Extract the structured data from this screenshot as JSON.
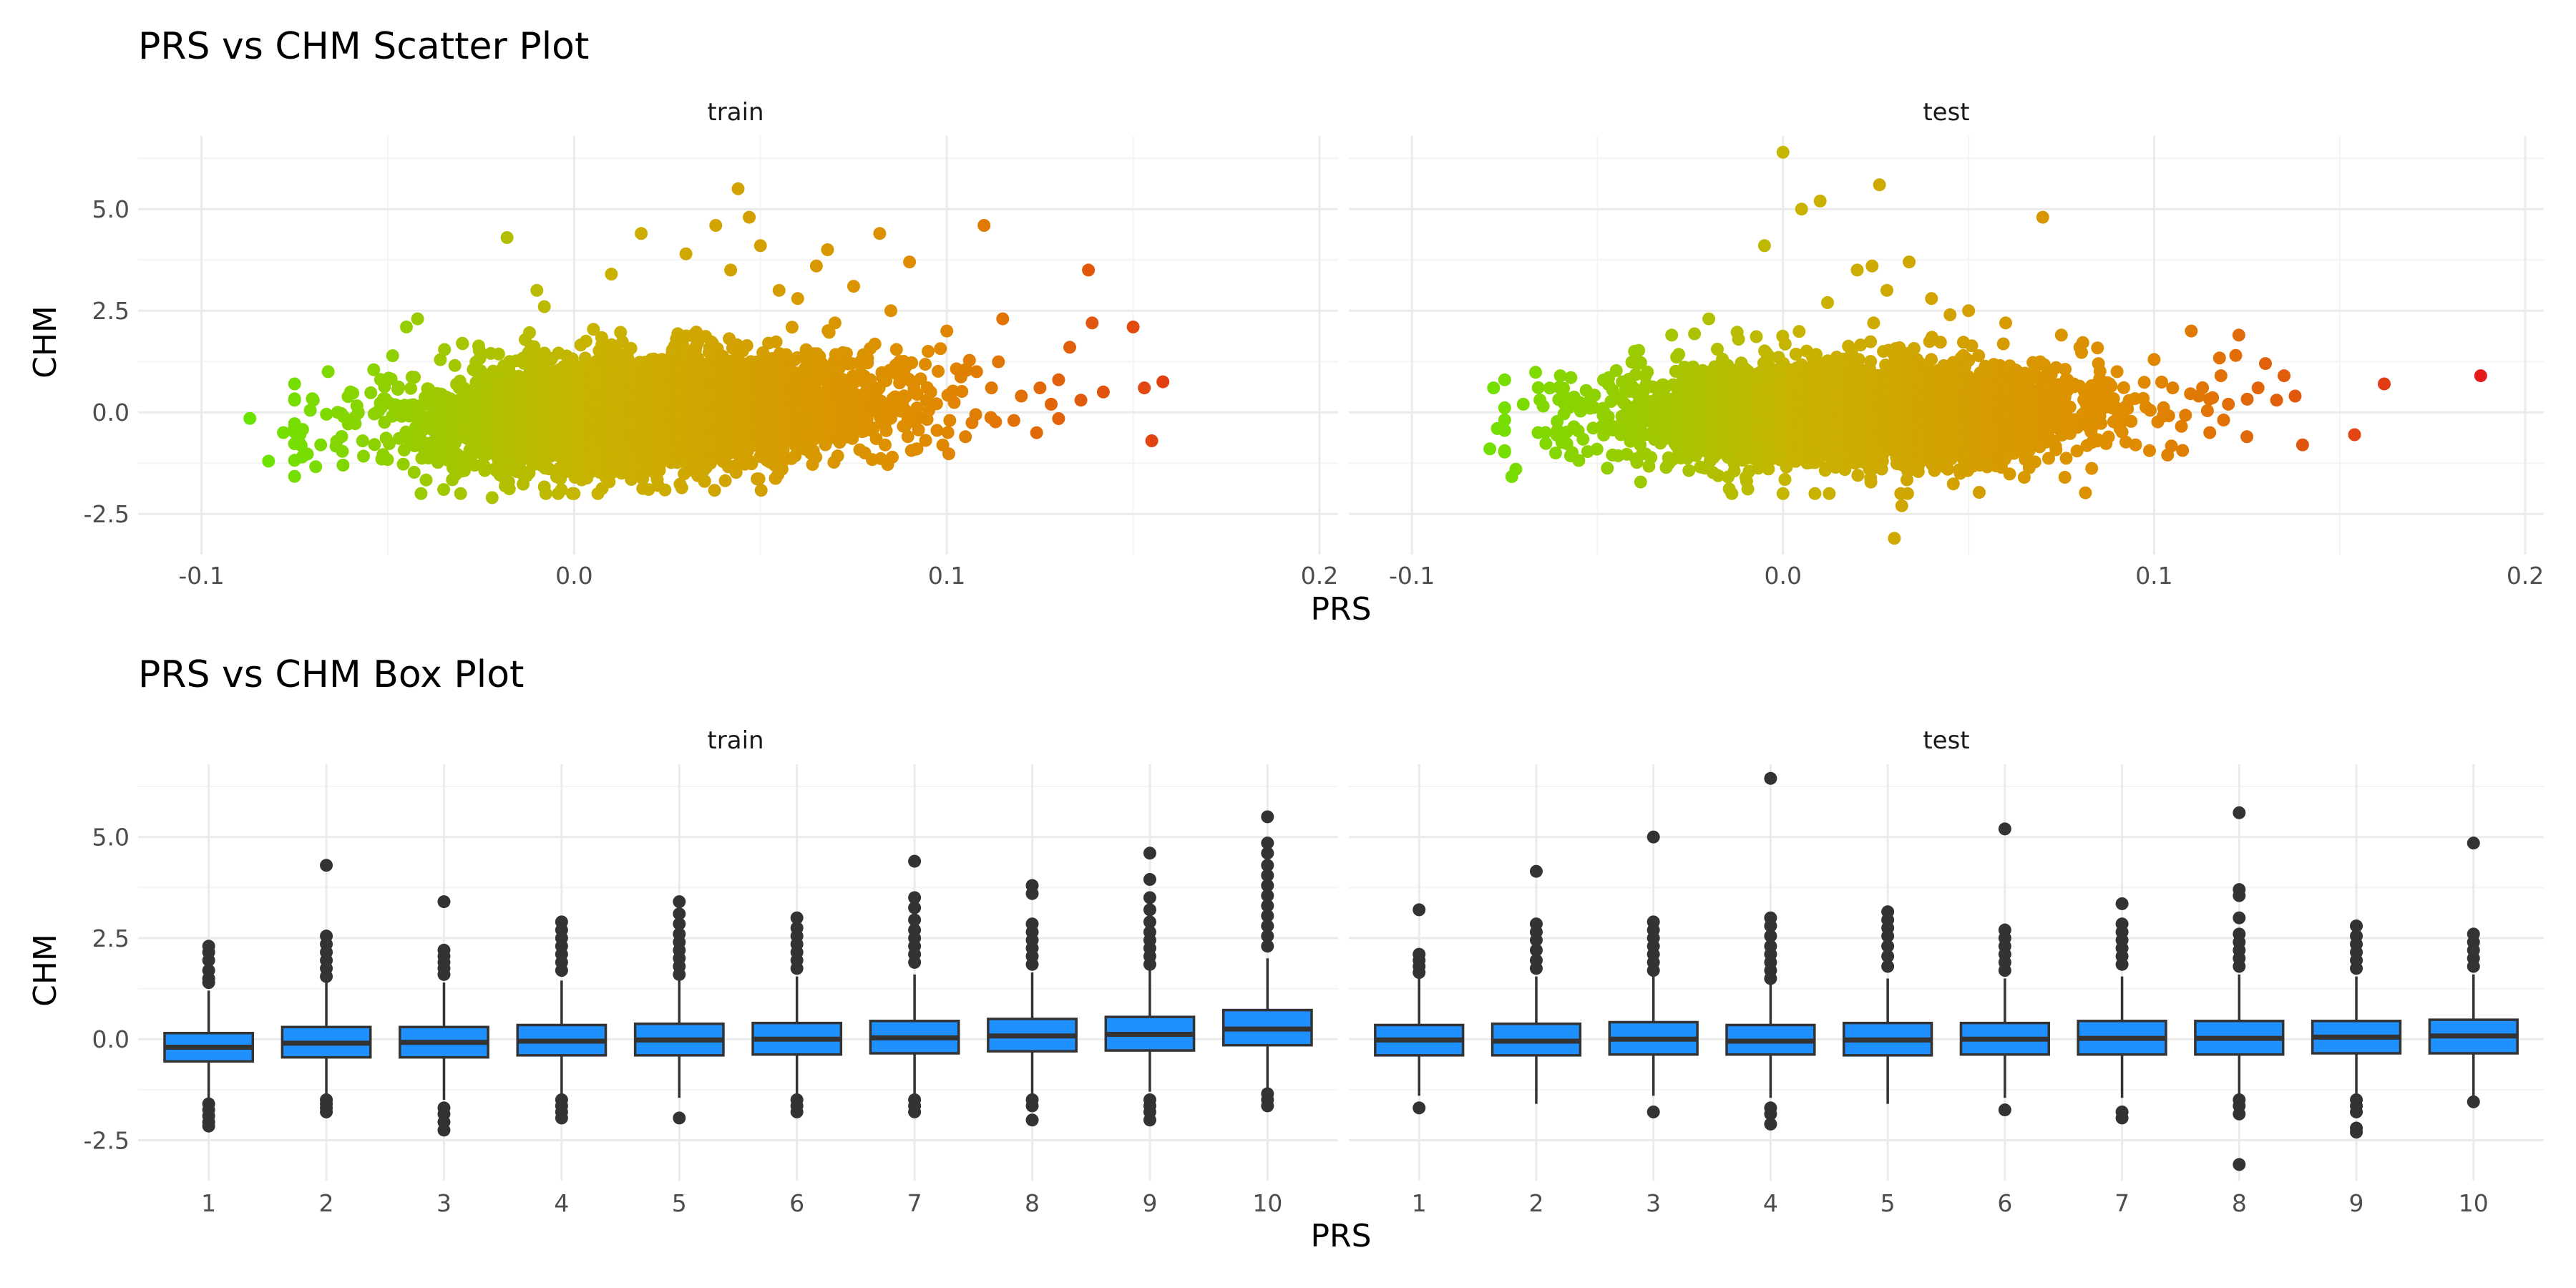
{
  "chart_data": [
    {
      "type": "scatter",
      "title": "PRS vs CHM Scatter Plot",
      "xlabel": "PRS",
      "ylabel": "CHM",
      "xlim": [
        -0.1,
        0.2
      ],
      "ylim": [
        -3.5,
        6.8
      ],
      "x_ticks": [
        "-0.1",
        "0.0",
        "0.1",
        "0.2"
      ],
      "y_ticks": [
        "-2.5",
        "0.0",
        "2.5",
        "5.0"
      ],
      "color_gradient": [
        "#66e600",
        "#c8b400",
        "#e08a00",
        "#e31a1c"
      ],
      "legend": "none",
      "grid": true,
      "facets": [
        {
          "label": "train",
          "cloud": {
            "x_mean": 0.02,
            "x_sd": 0.03,
            "y_mean": 0.0,
            "y_sd": 0.65,
            "n": 4500
          },
          "points": [
            [
              -0.087,
              -0.15
            ],
            [
              -0.082,
              -1.2
            ],
            [
              -0.078,
              -0.5
            ],
            [
              -0.075,
              0.7
            ],
            [
              -0.073,
              -1.1
            ],
            [
              -0.07,
              0.3
            ],
            [
              -0.068,
              -0.8
            ],
            [
              -0.066,
              1.0
            ],
            [
              -0.062,
              -1.3
            ],
            [
              -0.06,
              0.5
            ],
            [
              -0.045,
              2.1
            ],
            [
              -0.042,
              2.3
            ],
            [
              -0.035,
              -1.9
            ],
            [
              -0.03,
              1.7
            ],
            [
              -0.022,
              -2.1
            ],
            [
              -0.018,
              4.3
            ],
            [
              -0.01,
              3.0
            ],
            [
              -0.008,
              2.6
            ],
            [
              0.0,
              -2.0
            ],
            [
              0.01,
              3.4
            ],
            [
              0.018,
              4.4
            ],
            [
              0.02,
              -1.9
            ],
            [
              0.03,
              3.9
            ],
            [
              0.035,
              -1.7
            ],
            [
              0.038,
              4.6
            ],
            [
              0.042,
              3.5
            ],
            [
              0.044,
              5.5
            ],
            [
              0.047,
              4.8
            ],
            [
              0.05,
              4.1
            ],
            [
              0.055,
              3.0
            ],
            [
              0.06,
              2.8
            ],
            [
              0.065,
              3.6
            ],
            [
              0.068,
              4.0
            ],
            [
              0.07,
              2.2
            ],
            [
              0.075,
              3.1
            ],
            [
              0.078,
              -1.0
            ],
            [
              0.082,
              4.4
            ],
            [
              0.085,
              2.5
            ],
            [
              0.09,
              3.7
            ],
            [
              0.092,
              -0.9
            ],
            [
              0.095,
              1.5
            ],
            [
              0.1,
              2.0
            ],
            [
              0.105,
              -0.6
            ],
            [
              0.108,
              1.0
            ],
            [
              0.11,
              4.6
            ],
            [
              0.112,
              0.6
            ],
            [
              0.115,
              2.3
            ],
            [
              0.118,
              -0.2
            ],
            [
              0.12,
              0.4
            ],
            [
              0.125,
              0.6
            ],
            [
              0.128,
              0.2
            ],
            [
              0.13,
              0.8
            ],
            [
              0.133,
              1.6
            ],
            [
              0.136,
              0.3
            ],
            [
              0.138,
              3.5
            ],
            [
              0.139,
              2.2
            ],
            [
              0.142,
              0.5
            ],
            [
              0.15,
              2.1
            ],
            [
              0.153,
              0.6
            ],
            [
              0.155,
              -0.7
            ],
            [
              0.158,
              0.75
            ]
          ]
        },
        {
          "label": "test",
          "cloud": {
            "x_mean": 0.02,
            "x_sd": 0.03,
            "y_mean": 0.0,
            "y_sd": 0.6,
            "n": 4000
          },
          "points": [
            [
              -0.079,
              -0.9
            ],
            [
              -0.078,
              0.6
            ],
            [
              -0.077,
              -0.4
            ],
            [
              -0.075,
              0.8
            ],
            [
              -0.072,
              -1.4
            ],
            [
              -0.07,
              0.2
            ],
            [
              -0.066,
              -0.5
            ],
            [
              -0.06,
              0.9
            ],
            [
              -0.04,
              1.5
            ],
            [
              -0.03,
              1.9
            ],
            [
              -0.02,
              2.3
            ],
            [
              -0.012,
              1.8
            ],
            [
              -0.01,
              -1.6
            ],
            [
              0.0,
              6.4
            ],
            [
              0.0,
              -2.0
            ],
            [
              -0.005,
              4.1
            ],
            [
              0.005,
              5.0
            ],
            [
              0.01,
              5.2
            ],
            [
              0.012,
              2.7
            ],
            [
              0.02,
              3.5
            ],
            [
              0.024,
              3.6
            ],
            [
              0.026,
              5.6
            ],
            [
              0.028,
              3.0
            ],
            [
              0.03,
              -3.1
            ],
            [
              0.032,
              -2.3
            ],
            [
              0.034,
              3.7
            ],
            [
              0.04,
              2.8
            ],
            [
              0.045,
              2.4
            ],
            [
              0.05,
              2.5
            ],
            [
              0.06,
              2.2
            ],
            [
              0.065,
              -1.6
            ],
            [
              0.07,
              4.8
            ],
            [
              0.075,
              1.9
            ],
            [
              0.08,
              1.6
            ],
            [
              0.085,
              1.2
            ],
            [
              0.09,
              1.0
            ],
            [
              0.095,
              -0.8
            ],
            [
              0.1,
              1.3
            ],
            [
              0.105,
              0.6
            ],
            [
              0.11,
              2.0
            ],
            [
              0.112,
              0.4
            ],
            [
              0.115,
              -0.5
            ],
            [
              0.118,
              0.9
            ],
            [
              0.12,
              0.2
            ],
            [
              0.122,
              1.4
            ],
            [
              0.125,
              -0.6
            ],
            [
              0.128,
              0.6
            ],
            [
              0.13,
              1.2
            ],
            [
              0.133,
              0.3
            ],
            [
              0.135,
              0.9
            ],
            [
              0.138,
              0.4
            ],
            [
              0.14,
              -0.8
            ],
            [
              0.154,
              -0.55
            ],
            [
              0.162,
              0.7
            ],
            [
              0.188,
              0.9
            ]
          ]
        }
      ]
    },
    {
      "type": "box",
      "title": "PRS vs CHM Box Plot",
      "xlabel": "PRS",
      "ylabel": "CHM",
      "categories": [
        "1",
        "2",
        "3",
        "4",
        "5",
        "6",
        "7",
        "8",
        "9",
        "10"
      ],
      "ylim": [
        -3.5,
        6.8
      ],
      "y_ticks": [
        "-2.5",
        "0.0",
        "2.5",
        "5.0"
      ],
      "box_color": "#1e90ff",
      "grid": true,
      "facets": [
        {
          "label": "train",
          "boxes": [
            {
              "q1": -0.55,
              "median": -0.2,
              "q3": 0.15,
              "whisker_low": -1.5,
              "whisker_high": 1.2,
              "outliers": [
                2.3,
                2.15,
                1.95,
                1.7,
                1.5,
                1.4,
                -1.6,
                -1.75,
                -1.9,
                -2.05,
                -2.15
              ]
            },
            {
              "q1": -0.45,
              "median": -0.1,
              "q3": 0.3,
              "whisker_low": -1.45,
              "whisker_high": 1.4,
              "outliers": [
                4.3,
                2.55,
                2.35,
                2.15,
                1.95,
                1.75,
                1.55,
                -1.5,
                -1.6,
                -1.7,
                -1.8
              ]
            },
            {
              "q1": -0.45,
              "median": -0.08,
              "q3": 0.3,
              "whisker_low": -1.5,
              "whisker_high": 1.4,
              "outliers": [
                3.4,
                2.2,
                2.05,
                1.9,
                1.75,
                1.6,
                -1.7,
                -1.85,
                -2.05,
                -2.25
              ]
            },
            {
              "q1": -0.4,
              "median": -0.05,
              "q3": 0.35,
              "whisker_low": -1.45,
              "whisker_high": 1.45,
              "outliers": [
                2.9,
                2.7,
                2.5,
                2.3,
                2.1,
                1.9,
                1.7,
                -1.5,
                -1.65,
                -1.8,
                -1.95
              ]
            },
            {
              "q1": -0.4,
              "median": -0.02,
              "q3": 0.38,
              "whisker_low": -1.45,
              "whisker_high": 1.5,
              "outliers": [
                3.4,
                3.1,
                2.85,
                2.6,
                2.4,
                2.2,
                2.0,
                1.8,
                1.6,
                -1.95
              ]
            },
            {
              "q1": -0.38,
              "median": 0.0,
              "q3": 0.4,
              "whisker_low": -1.45,
              "whisker_high": 1.55,
              "outliers": [
                3.0,
                2.75,
                2.55,
                2.35,
                2.15,
                1.95,
                1.75,
                -1.5,
                -1.65,
                -1.8
              ]
            },
            {
              "q1": -0.35,
              "median": 0.03,
              "q3": 0.45,
              "whisker_low": -1.4,
              "whisker_high": 1.6,
              "outliers": [
                4.4,
                3.5,
                3.25,
                2.95,
                2.7,
                2.5,
                2.3,
                2.1,
                1.9,
                -1.5,
                -1.65,
                -1.8
              ]
            },
            {
              "q1": -0.3,
              "median": 0.08,
              "q3": 0.5,
              "whisker_low": -1.35,
              "whisker_high": 1.65,
              "outliers": [
                3.8,
                3.6,
                2.85,
                2.65,
                2.45,
                2.25,
                2.05,
                1.85,
                -1.5,
                -1.65,
                -2.0
              ]
            },
            {
              "q1": -0.28,
              "median": 0.12,
              "q3": 0.55,
              "whisker_low": -1.3,
              "whisker_high": 1.7,
              "outliers": [
                4.6,
                3.95,
                3.5,
                3.2,
                2.9,
                2.65,
                2.45,
                2.25,
                2.05,
                1.85,
                -1.5,
                -1.65,
                -1.8,
                -2.0
              ]
            },
            {
              "q1": -0.15,
              "median": 0.25,
              "q3": 0.72,
              "whisker_low": -1.3,
              "whisker_high": 2.0,
              "outliers": [
                5.5,
                4.85,
                4.6,
                4.3,
                4.05,
                3.8,
                3.55,
                3.3,
                3.05,
                2.8,
                2.55,
                2.3,
                -1.35,
                -1.5,
                -1.65
              ]
            }
          ]
        },
        {
          "label": "test",
          "boxes": [
            {
              "q1": -0.4,
              "median": -0.02,
              "q3": 0.35,
              "whisker_low": -1.4,
              "whisker_high": 1.5,
              "outliers": [
                3.2,
                2.1,
                1.95,
                1.8,
                1.65,
                -1.7
              ]
            },
            {
              "q1": -0.4,
              "median": -0.05,
              "q3": 0.38,
              "whisker_low": -1.6,
              "whisker_high": 1.55,
              "outliers": [
                4.15,
                2.85,
                2.65,
                2.45,
                2.2,
                1.95,
                1.75
              ]
            },
            {
              "q1": -0.38,
              "median": 0.0,
              "q3": 0.42,
              "whisker_low": -1.4,
              "whisker_high": 1.55,
              "outliers": [
                5.0,
                2.9,
                2.7,
                2.5,
                2.3,
                2.1,
                1.9,
                1.7,
                -1.8
              ]
            },
            {
              "q1": -0.38,
              "median": -0.05,
              "q3": 0.35,
              "whisker_low": -1.45,
              "whisker_high": 1.45,
              "outliers": [
                6.45,
                3.0,
                2.8,
                2.55,
                2.3,
                2.1,
                1.9,
                1.7,
                1.5,
                -1.7,
                -1.85,
                -2.1
              ]
            },
            {
              "q1": -0.4,
              "median": -0.02,
              "q3": 0.4,
              "whisker_low": -1.6,
              "whisker_high": 1.5,
              "outliers": [
                3.15,
                2.95,
                2.75,
                2.55,
                2.3,
                2.05,
                1.8
              ]
            },
            {
              "q1": -0.38,
              "median": 0.0,
              "q3": 0.4,
              "whisker_low": -1.45,
              "whisker_high": 1.5,
              "outliers": [
                5.2,
                2.7,
                2.5,
                2.3,
                2.1,
                1.9,
                1.7,
                -1.75
              ]
            },
            {
              "q1": -0.38,
              "median": 0.02,
              "q3": 0.45,
              "whisker_low": -1.45,
              "whisker_high": 1.55,
              "outliers": [
                3.35,
                2.85,
                2.65,
                2.45,
                2.25,
                2.05,
                1.85,
                -1.8,
                -1.95
              ]
            },
            {
              "q1": -0.38,
              "median": 0.02,
              "q3": 0.45,
              "whisker_low": -1.45,
              "whisker_high": 1.6,
              "outliers": [
                5.6,
                3.7,
                3.55,
                3.0,
                2.6,
                2.4,
                2.2,
                2.0,
                1.8,
                -1.5,
                -1.65,
                -1.85,
                -3.1
              ]
            },
            {
              "q1": -0.35,
              "median": 0.05,
              "q3": 0.45,
              "whisker_low": -1.4,
              "whisker_high": 1.55,
              "outliers": [
                2.8,
                2.55,
                2.35,
                2.15,
                1.95,
                1.75,
                -1.5,
                -1.65,
                -1.8,
                -2.2,
                -2.3
              ]
            },
            {
              "q1": -0.35,
              "median": 0.08,
              "q3": 0.48,
              "whisker_low": -1.4,
              "whisker_high": 1.6,
              "outliers": [
                4.85,
                2.6,
                2.4,
                2.2,
                2.0,
                1.8,
                -1.55
              ]
            }
          ]
        }
      ]
    }
  ]
}
